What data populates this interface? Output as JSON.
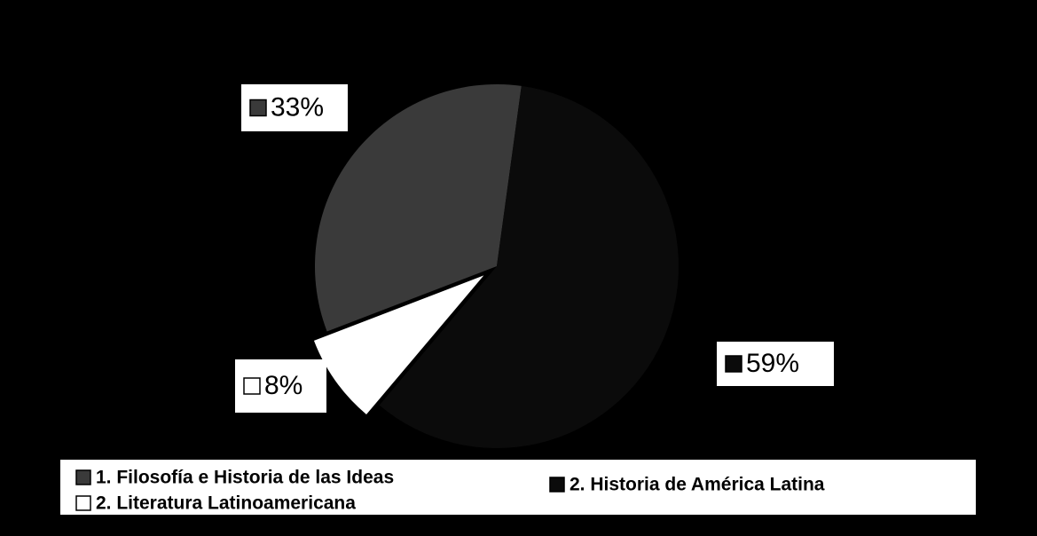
{
  "chart_data": {
    "type": "pie",
    "categories": [
      "1.  Filosofía e Historia de las Ideas",
      "2.  Historia de América Latina",
      "2.  Literatura Latinoamericana"
    ],
    "values": [
      33,
      59,
      8
    ],
    "value_labels": [
      "33%",
      "59%",
      "8%"
    ],
    "colors": [
      "#3a3a3a",
      "#0b0b0b",
      "#ffffff"
    ],
    "exploded": [
      false,
      false,
      true
    ]
  }
}
